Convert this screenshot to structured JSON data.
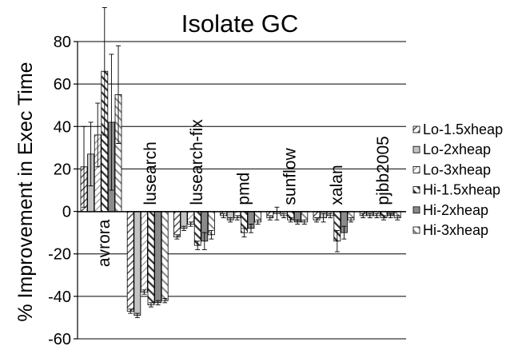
{
  "chart_data": {
    "type": "bar",
    "title": "Isolate GC",
    "ylabel": "% Improvement in Exec Time",
    "xlabel": "",
    "ylim": [
      -60,
      80
    ],
    "yticks": [
      80,
      60,
      40,
      20,
      0,
      -20,
      -40,
      -60
    ],
    "grid": true,
    "legend_position": "right",
    "categories": [
      "avrora",
      "lusearch",
      "lusearch-fix",
      "pmd",
      "sunflow",
      "xalan",
      "pjbb2005"
    ],
    "series": [
      {
        "name": "Lo-1.5xheap",
        "values": [
          21,
          -47,
          -12,
          -2,
          -3,
          -4,
          -2
        ],
        "errors": [
          19,
          1,
          1,
          1,
          1,
          1,
          1
        ],
        "pattern": "diag-thin",
        "color": "#777777"
      },
      {
        "name": "Lo-2xheap",
        "values": [
          27,
          -49,
          -8,
          -4,
          -1,
          -3,
          -2
        ],
        "errors": [
          15,
          1,
          1,
          1,
          3,
          2,
          1
        ],
        "pattern": "solid",
        "color": "#c4c4c4"
      },
      {
        "name": "Lo-3xheap",
        "values": [
          36,
          -38,
          -6,
          -3,
          -2,
          -2,
          -2
        ],
        "errors": [
          15,
          1,
          1,
          1,
          1,
          1,
          1
        ],
        "pattern": "diag-light",
        "color": "#aaaaaa"
      },
      {
        "name": "Hi-1.5xheap",
        "values": [
          66,
          -44,
          -16,
          -10,
          -4,
          -14,
          -3
        ],
        "errors": [
          30,
          1,
          2,
          2,
          1,
          5,
          1
        ],
        "pattern": "diag-thick",
        "color": "#333333"
      },
      {
        "name": "Hi-2xheap",
        "values": [
          42,
          -43,
          -14,
          -8,
          -5,
          -10,
          -2
        ],
        "errors": [
          32,
          1,
          4,
          2,
          1,
          3,
          1
        ],
        "pattern": "solid",
        "color": "#8a8a8a"
      },
      {
        "name": "Hi-3xheap",
        "values": [
          55,
          -42,
          -11,
          -5,
          -5,
          -4,
          -3
        ],
        "errors": [
          23,
          1,
          2,
          1,
          1,
          1,
          1
        ],
        "pattern": "diag-mid",
        "color": "#bdbdbd"
      }
    ]
  }
}
